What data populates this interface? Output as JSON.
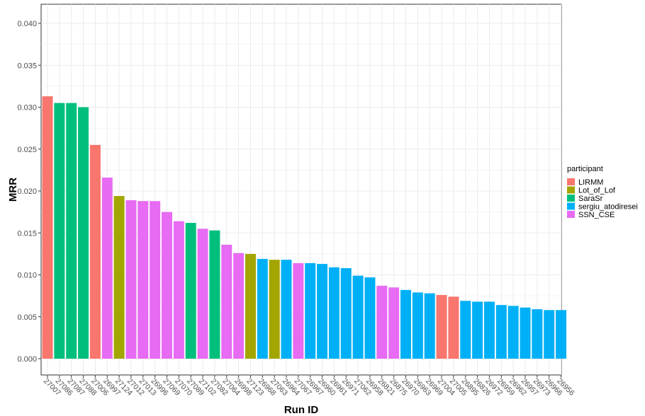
{
  "chart_data": {
    "type": "bar",
    "xlabel": "Run ID",
    "ylabel": "MRR",
    "ylim": [
      0,
      0.0415
    ],
    "yticks": [
      "0.000",
      "0.005",
      "0.010",
      "0.015",
      "0.020",
      "0.025",
      "0.030",
      "0.035",
      "0.040"
    ],
    "grid": true,
    "legend": {
      "title": "participant",
      "placement": "right",
      "entries": [
        {
          "name": "LIRMM",
          "color": "#F8766D"
        },
        {
          "name": "Lot_of_Lof",
          "color": "#A3A500"
        },
        {
          "name": "SaraSr",
          "color": "#00BF7D"
        },
        {
          "name": "sergiu_atodiresei",
          "color": "#00B0F6"
        },
        {
          "name": "SSN_CSE",
          "color": "#E76BF3"
        }
      ]
    },
    "categories": [
      "27007",
      "27086",
      "27087",
      "27088",
      "27006",
      "26997",
      "27124",
      "27012",
      "27013",
      "26996",
      "27069",
      "27070",
      "27089",
      "27102",
      "27082",
      "27064",
      "26998",
      "27123",
      "26968",
      "27063",
      "26964",
      "27067",
      "26967",
      "26960",
      "26961",
      "26971",
      "27062",
      "26958",
      "26821",
      "26875",
      "26970",
      "26963",
      "26969",
      "27004",
      "27005",
      "26895",
      "26826",
      "26972",
      "26959",
      "26962",
      "26957",
      "26973",
      "26966",
      "26956"
    ],
    "values": [
      0.0313,
      0.0305,
      0.0305,
      0.03,
      0.0255,
      0.0216,
      0.0194,
      0.0189,
      0.0188,
      0.0188,
      0.0175,
      0.0164,
      0.0162,
      0.0155,
      0.0153,
      0.0136,
      0.0126,
      0.0125,
      0.0119,
      0.0118,
      0.0118,
      0.0114,
      0.0114,
      0.0113,
      0.0109,
      0.0108,
      0.0099,
      0.0097,
      0.0087,
      0.0085,
      0.0082,
      0.0079,
      0.0078,
      0.0076,
      0.0074,
      0.0069,
      0.0068,
      0.0068,
      0.0064,
      0.0063,
      0.0061,
      0.0059,
      0.0058,
      0.0058
    ],
    "participants": [
      "LIRMM",
      "SaraSr",
      "SaraSr",
      "SaraSr",
      "LIRMM",
      "SSN_CSE",
      "Lot_of_Lof",
      "SSN_CSE",
      "SSN_CSE",
      "SSN_CSE",
      "SSN_CSE",
      "SSN_CSE",
      "SaraSr",
      "SSN_CSE",
      "SaraSr",
      "SSN_CSE",
      "SSN_CSE",
      "Lot_of_Lof",
      "sergiu_atodiresei",
      "Lot_of_Lof",
      "sergiu_atodiresei",
      "SSN_CSE",
      "sergiu_atodiresei",
      "sergiu_atodiresei",
      "sergiu_atodiresei",
      "sergiu_atodiresei",
      "sergiu_atodiresei",
      "sergiu_atodiresei",
      "SSN_CSE",
      "SSN_CSE",
      "sergiu_atodiresei",
      "sergiu_atodiresei",
      "sergiu_atodiresei",
      "LIRMM",
      "LIRMM",
      "sergiu_atodiresei",
      "sergiu_atodiresei",
      "sergiu_atodiresei",
      "sergiu_atodiresei",
      "sergiu_atodiresei",
      "sergiu_atodiresei",
      "sergiu_atodiresei",
      "sergiu_atodiresei",
      "sergiu_atodiresei"
    ]
  }
}
